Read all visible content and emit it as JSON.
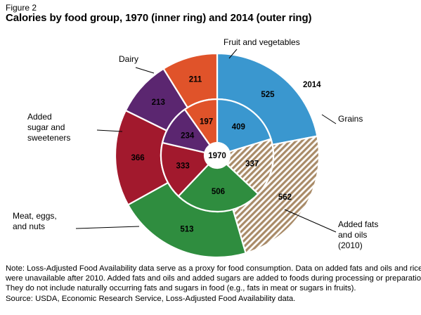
{
  "figure_label": "Figure 2",
  "title": "Calories by food group, 1970 (inner ring) and 2014 (outer ring)",
  "chart_data": {
    "type": "donut",
    "title": "Calories by food group, 1970 (inner ring) and 2014 (outer ring)",
    "center_label": "1970",
    "outer_ring_label": "2014",
    "categories": [
      "Grains",
      "Added fats and oils (2010)",
      "Meat, eggs, and nuts",
      "Added sugar and sweeteners",
      "Dairy",
      "Fruit and vegetables"
    ],
    "series": [
      {
        "name": "1970",
        "ring": "inner",
        "values": [
          409,
          337,
          506,
          333,
          234,
          197
        ]
      },
      {
        "name": "2014",
        "ring": "outer",
        "values": [
          525,
          562,
          513,
          366,
          213,
          211
        ]
      }
    ],
    "colors": {
      "Grains": "#3a97cf",
      "Added fats and oils (2010)": "#a98b68",
      "Meat, eggs, and nuts": "#2f8d3f",
      "Added sugar and sweeteners": "#a2192d",
      "Dairy": "#5b2670",
      "Fruit and vegetables": "#e0532a"
    },
    "hatched": [
      "Added fats and oils (2010)"
    ],
    "category_labels": [
      {
        "category": "Grains",
        "lines": [
          "Grains"
        ]
      },
      {
        "category": "Added fats and oils (2010)",
        "lines": [
          "Added fats",
          "and oils",
          "(2010)"
        ]
      },
      {
        "category": "Meat, eggs, and nuts",
        "lines": [
          "Meat, eggs,",
          "and nuts"
        ]
      },
      {
        "category": "Added sugar and sweeteners",
        "lines": [
          "Added",
          "sugar and",
          "sweeteners"
        ]
      },
      {
        "category": "Dairy",
        "lines": [
          "Dairy"
        ]
      },
      {
        "category": "Fruit and vegetables",
        "lines": [
          "Fruit and vegetables"
        ]
      }
    ]
  },
  "note": {
    "lines": [
      "Note: Loss-Adjusted Food Availability data serve as a proxy for food consumption. Data on added fats and oils and rice",
      "were unavailable after 2010. Added fats and oils and added sugars are added to foods during processing or preparation.",
      "They do not include naturally occurring fats and sugars in food (e.g., fats in meat or sugars in fruits)."
    ],
    "source": "Source:  USDA, Economic Research Service, Loss-Adjusted Food Availability data."
  }
}
